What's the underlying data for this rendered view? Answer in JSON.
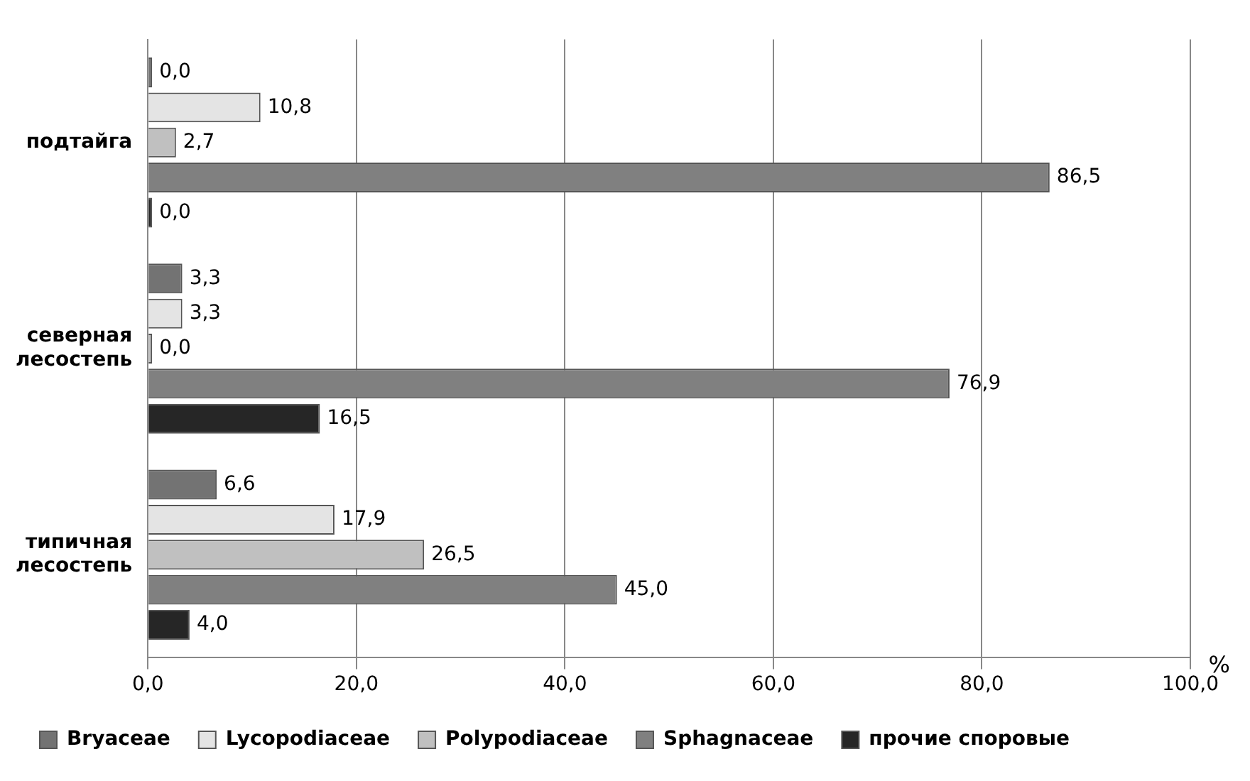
{
  "chart_data": {
    "type": "bar",
    "orientation": "horizontal",
    "xlabel": "%",
    "categories": [
      "подтайга",
      "северная лесостепь",
      "типичная лесостепь"
    ],
    "series": [
      {
        "name": "Bryaceae",
        "color": "#737373",
        "values": [
          0.0,
          3.3,
          6.6
        ],
        "value_labels": [
          "0,0",
          "3,3",
          "6,6"
        ]
      },
      {
        "name": "Lycopodiaceae",
        "color": "#e4e4e4",
        "values": [
          10.8,
          3.3,
          17.9
        ],
        "value_labels": [
          "10,8",
          "3,3",
          "17,9"
        ]
      },
      {
        "name": "Polypodiaceae",
        "color": "#c0c0c0",
        "values": [
          2.7,
          0.0,
          26.5
        ],
        "value_labels": [
          "2,7",
          "0,0",
          "26,5"
        ]
      },
      {
        "name": "Sphagnaceae",
        "color": "#808080",
        "values": [
          86.5,
          76.9,
          45.0
        ],
        "value_labels": [
          "86,5",
          "76,9",
          "45,0"
        ]
      },
      {
        "name": "прочие споровые",
        "color": "#262626",
        "values": [
          0.0,
          16.5,
          4.0
        ],
        "value_labels": [
          "0,0",
          "16,5",
          "4,0"
        ]
      }
    ],
    "xlim": [
      0,
      100
    ],
    "xticks": [
      {
        "value": 0,
        "label": "0,0"
      },
      {
        "value": 20,
        "label": "20,0"
      },
      {
        "value": 40,
        "label": "40,0"
      },
      {
        "value": 60,
        "label": "60,0"
      },
      {
        "value": 80,
        "label": "80,0"
      },
      {
        "value": 100,
        "label": "100,0"
      }
    ],
    "grid": "x",
    "legend": "bottom"
  }
}
